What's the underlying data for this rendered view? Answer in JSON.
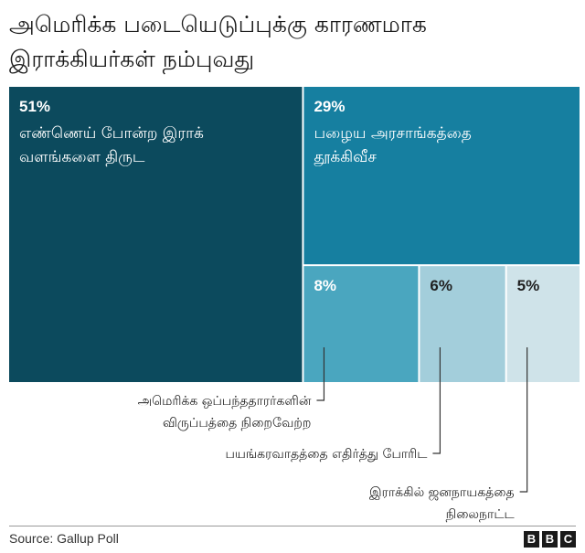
{
  "title": "அமெரிக்க படையெடுப்புக்கு காரணமாக இராக்கியர்கள் நம்புவது",
  "source": "Source: Gallup Poll",
  "logo_letters": [
    "B",
    "B",
    "C"
  ],
  "colors": {
    "steal_oil": "#0c4a5d",
    "topple_government": "#167fa0",
    "contractors": "#4aa6bf",
    "fight_terrorism": "#a3cedb",
    "establish_democracy": "#cfe3e9"
  },
  "chart_data": {
    "type": "treemap",
    "units": "%",
    "items": [
      {
        "id": "steal_oil",
        "pct_label": "51%",
        "value": 51,
        "label_lines": [
          "எண்ணெய் போன்ற இராக்",
          "வளங்களை திருட"
        ]
      },
      {
        "id": "topple_government",
        "pct_label": "29%",
        "value": 29,
        "label_lines": [
          "பழைய அரசாங்கத்தை",
          "தூக்கிவீச"
        ]
      },
      {
        "id": "contractors",
        "pct_label": "8%",
        "value": 8,
        "label_lines": [
          "அமெரிக்க ஒப்பந்ததாரர்களின்",
          "விருப்பத்தை நிறைவேற்ற"
        ]
      },
      {
        "id": "fight_terrorism",
        "pct_label": "6%",
        "value": 6,
        "label_lines": [
          "பயங்கரவாதத்தை எதிர்த்து போரிட"
        ]
      },
      {
        "id": "establish_democracy",
        "pct_label": "5%",
        "value": 5,
        "label_lines": [
          "இராக்கில் ஜனநாயகத்தை",
          "நிலைநாட்ட"
        ]
      }
    ]
  }
}
